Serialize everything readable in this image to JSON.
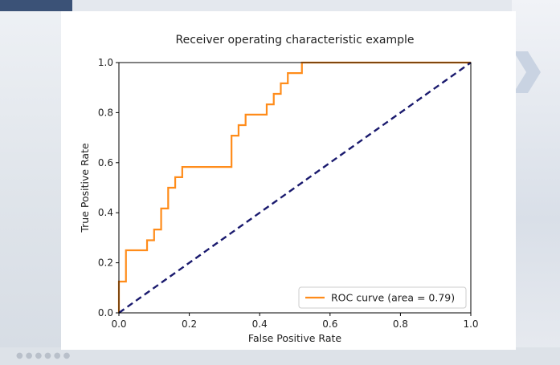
{
  "chart_data": {
    "type": "line",
    "title": "Receiver operating characteristic example",
    "xlabel": "False Positive Rate",
    "ylabel": "True Positive Rate",
    "xlim": [
      0.0,
      1.0
    ],
    "ylim": [
      0.0,
      1.0
    ],
    "xticks": [
      "0.0",
      "0.2",
      "0.4",
      "0.6",
      "0.8",
      "1.0"
    ],
    "yticks": [
      "0.0",
      "0.2",
      "0.4",
      "0.6",
      "0.8",
      "1.0"
    ],
    "grid": false,
    "legend_position": "lower-right",
    "series": [
      {
        "name": "ROC curve (area = 0.79)",
        "color": "#ff8c1a",
        "style": "step",
        "x": [
          0.0,
          0.0,
          0.02,
          0.02,
          0.08,
          0.08,
          0.1,
          0.1,
          0.12,
          0.12,
          0.14,
          0.14,
          0.16,
          0.16,
          0.18,
          0.18,
          0.32,
          0.32,
          0.34,
          0.34,
          0.36,
          0.36,
          0.42,
          0.42,
          0.44,
          0.44,
          0.46,
          0.46,
          0.48,
          0.48,
          0.52,
          0.52,
          0.58,
          0.58,
          1.0
        ],
        "y": [
          0.0,
          0.125,
          0.125,
          0.25,
          0.25,
          0.29,
          0.29,
          0.333,
          0.333,
          0.417,
          0.417,
          0.5,
          0.5,
          0.542,
          0.542,
          0.583,
          0.583,
          0.708,
          0.708,
          0.75,
          0.75,
          0.792,
          0.792,
          0.833,
          0.833,
          0.875,
          0.875,
          0.917,
          0.917,
          0.958,
          0.958,
          1.0,
          1.0,
          1.0,
          1.0
        ]
      },
      {
        "color": "#1a1a6e",
        "style": "dashed",
        "x": [
          0.0,
          1.0
        ],
        "y": [
          0.0,
          1.0
        ]
      }
    ]
  }
}
